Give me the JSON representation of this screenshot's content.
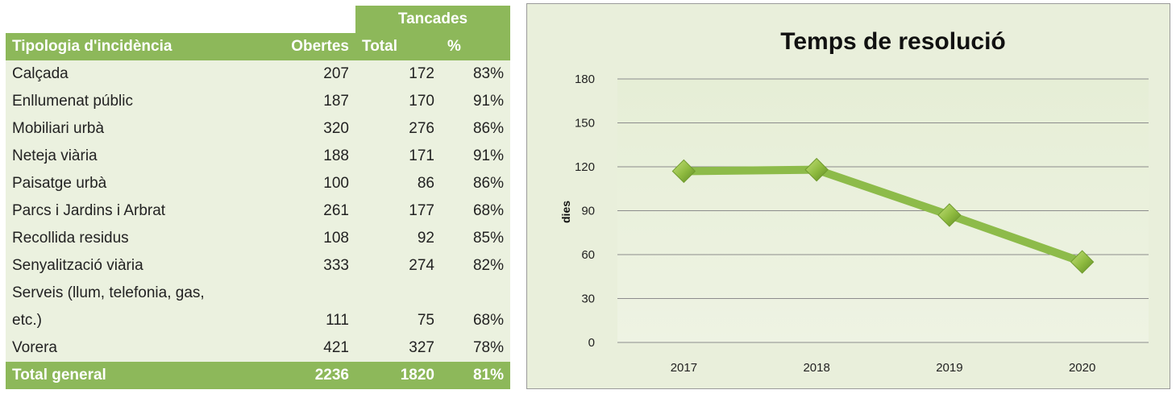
{
  "table": {
    "group_header": "Tancades",
    "headers": {
      "type": "Tipologia d'incidència",
      "open": "Obertes",
      "total": "Total",
      "pct": "%"
    },
    "rows": [
      {
        "type": "Calçada",
        "open": "207",
        "total": "172",
        "pct": "83%"
      },
      {
        "type": "Enllumenat públic",
        "open": "187",
        "total": "170",
        "pct": "91%"
      },
      {
        "type": "Mobiliari urbà",
        "open": "320",
        "total": "276",
        "pct": "86%"
      },
      {
        "type": "Neteja viària",
        "open": "188",
        "total": "171",
        "pct": "91%"
      },
      {
        "type": "Paisatge urbà",
        "open": "100",
        "total": "86",
        "pct": "86%"
      },
      {
        "type": "Parcs i Jardins i Arbrat",
        "open": "261",
        "total": "177",
        "pct": "68%"
      },
      {
        "type": "Recollida residus",
        "open": "108",
        "total": "92",
        "pct": "85%"
      },
      {
        "type": "Senyalització viària",
        "open": "333",
        "total": "274",
        "pct": "82%"
      },
      {
        "type": "Serveis (llum, telefonia, gas,",
        "type_cont": "etc.)",
        "open": "111",
        "total": "75",
        "pct": "68%"
      },
      {
        "type": "Vorera",
        "open": "421",
        "total": "327",
        "pct": "78%"
      }
    ],
    "total_row": {
      "type": "Total general",
      "open": "2236",
      "total": "1820",
      "pct": "81%"
    }
  },
  "chart_data": {
    "type": "line",
    "title": "Temps de resolució",
    "ylabel": "dies",
    "xlabel": "",
    "categories": [
      "2017",
      "2018",
      "2019",
      "2020"
    ],
    "series": [
      {
        "values": [
          117,
          118,
          87,
          55
        ]
      }
    ],
    "ylim": [
      0,
      180
    ],
    "yticks": [
      0,
      30,
      60,
      90,
      120,
      150,
      180
    ],
    "grid": true,
    "legend": "none",
    "colors": {
      "line": "#8dbb4a",
      "marker": "#9cc846",
      "background": "#e9efdb",
      "gridline": "#8c8c8c"
    }
  }
}
